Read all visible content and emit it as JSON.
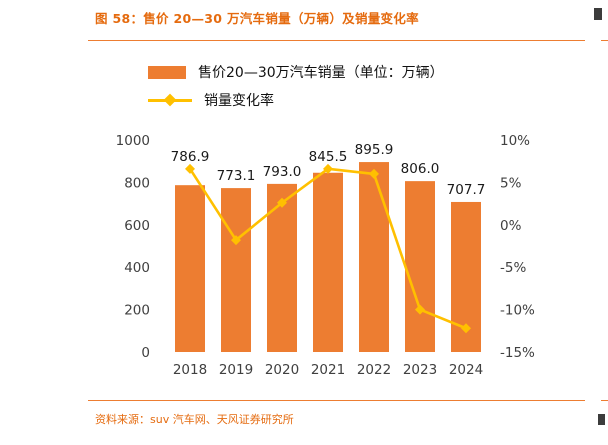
{
  "page": {
    "title": "图 58：售价 20—30 万汽车销量（万辆）及销量变化率",
    "source": "资料来源：suv 汽车网、天风证券研究所"
  },
  "colors": {
    "bar_orange": "#ed7d31",
    "line_yellow": "#ffc000",
    "title_orange": "#e56b0f",
    "rule_orange": "#ed7d31",
    "tick_text": "#404040",
    "value_label_text": "#1a1a1a"
  },
  "chart_data": {
    "type": "bar",
    "subtype": "bar-with-line-overlay",
    "categories": [
      "2018",
      "2019",
      "2020",
      "2021",
      "2022",
      "2023",
      "2024"
    ],
    "series": [
      {
        "name": "售价20—30万汽车销量（单位：万辆）",
        "type": "bar",
        "axis": "left",
        "color": "#ed7d31",
        "values": [
          786.9,
          773.1,
          793.0,
          845.5,
          895.9,
          806.0,
          707.7
        ]
      },
      {
        "name": "销量变化率",
        "type": "line",
        "axis": "right",
        "color": "#ffc000",
        "values_pct": [
          6.6,
          -1.8,
          2.6,
          6.6,
          6.0,
          -10.0,
          -12.2
        ]
      }
    ],
    "bar_value_labels": [
      "786.9",
      "773.1",
      "793.0",
      "845.5",
      "895.9",
      "806.0",
      "707.7"
    ],
    "left_axis": {
      "min": 0,
      "max": 1000,
      "ticks": [
        "1000",
        "800",
        "600",
        "400",
        "200",
        "0"
      ]
    },
    "right_axis": {
      "min": -15,
      "max": 10,
      "ticks": [
        "10%",
        "5%",
        "0%",
        "-5%",
        "-10%",
        "-15%"
      ]
    },
    "grid": false,
    "legend_position": "top-left"
  }
}
